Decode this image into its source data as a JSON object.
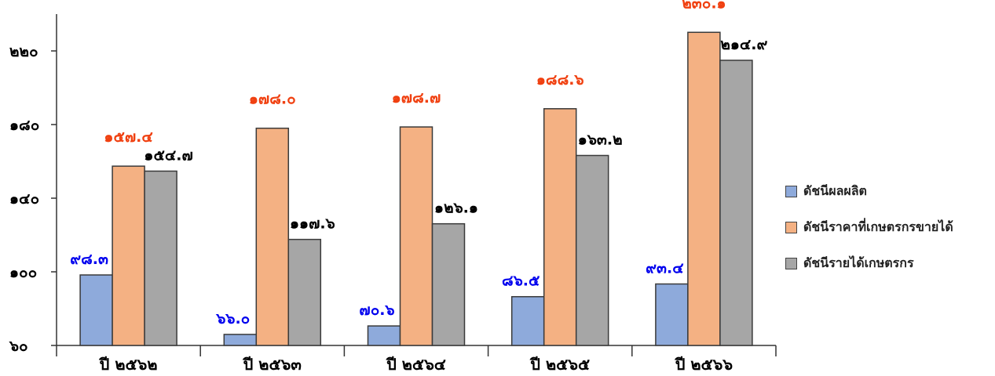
{
  "chart_data": {
    "type": "bar",
    "title": "",
    "xlabel": "",
    "ylabel": "",
    "ylim": [
      60,
      240
    ],
    "yticks": [
      {
        "value": 60,
        "label": "๖๐"
      },
      {
        "value": 100,
        "label": "๑๐๐"
      },
      {
        "value": 140,
        "label": "๑๔๐"
      },
      {
        "value": 180,
        "label": "๑๘๐"
      },
      {
        "value": 220,
        "label": "๒๒๐"
      }
    ],
    "categories": [
      "ปี ๒๕๖๒",
      "ปี ๒๕๖๓",
      "ปี ๒๕๖๔",
      "ปี ๒๕๖๕",
      "ปี ๒๕๖๖"
    ],
    "series": [
      {
        "name": "ดัชนีผลผลิต",
        "color": "#8eaadb",
        "label_color": "#0000ee",
        "values": [
          98.3,
          66.0,
          70.6,
          86.5,
          93.4
        ],
        "labels": [
          "๙๘.๓",
          "๖๖.๐",
          "๗๐.๖",
          "๘๖.๕",
          "๙๓.๔"
        ]
      },
      {
        "name": "ดัชนีราคาที่เกษตรกรขายได้",
        "color": "#f4b183",
        "label_color": "#f04010",
        "values": [
          157.4,
          178.0,
          178.7,
          188.6,
          230.1
        ],
        "labels": [
          "๑๕๗.๔",
          "๑๗๘.๐",
          "๑๗๘.๗",
          "๑๘๘.๖",
          "๒๓๐.๑"
        ]
      },
      {
        "name": "ดัชนีรายได้เกษตรกร",
        "color": "#a6a6a6",
        "label_color": "#000000",
        "values": [
          154.7,
          117.6,
          126.1,
          163.2,
          214.9
        ],
        "labels": [
          "๑๕๔.๗",
          "๑๑๗.๖",
          "๑๒๖.๑",
          "๑๖๓.๒",
          "๒๑๔.๙"
        ]
      }
    ],
    "legend_position": "right",
    "grid": false
  }
}
